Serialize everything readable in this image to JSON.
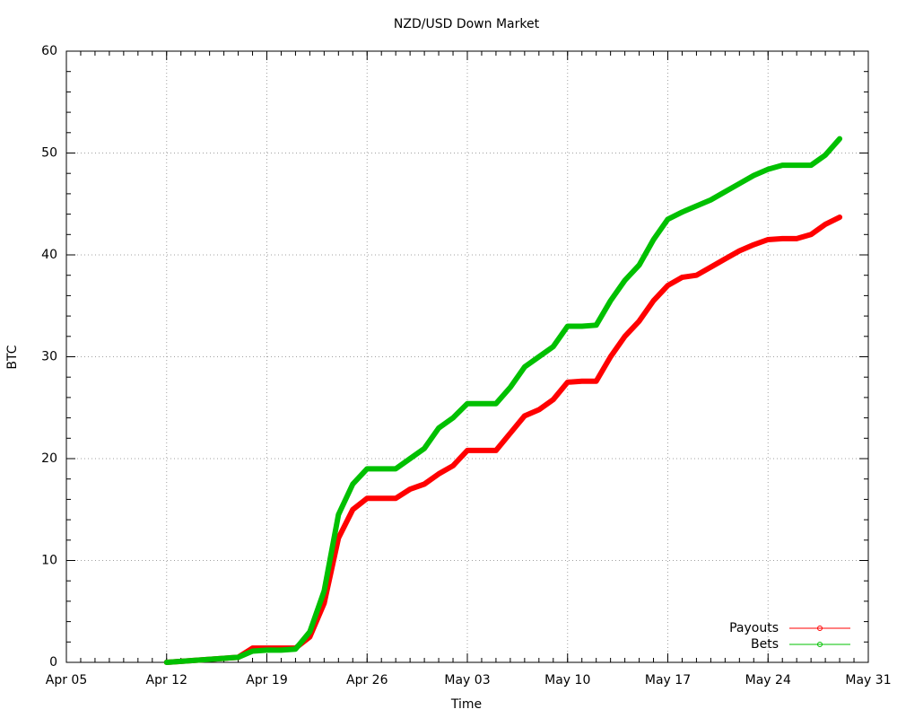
{
  "chart_data": {
    "type": "line",
    "title": "NZD/USD Down Market",
    "x_label": "Time",
    "y_label": "BTC",
    "x": [
      "Apr 12",
      "Apr 13",
      "Apr 14",
      "Apr 15",
      "Apr 16",
      "Apr 17",
      "Apr 18",
      "Apr 19",
      "Apr 20",
      "Apr 21",
      "Apr 22",
      "Apr 23",
      "Apr 24",
      "Apr 25",
      "Apr 26",
      "Apr 27",
      "Apr 28",
      "Apr 29",
      "Apr 30",
      "May 01",
      "May 02",
      "May 03",
      "May 04",
      "May 05",
      "May 06",
      "May 07",
      "May 08",
      "May 09",
      "May 10",
      "May 11",
      "May 12",
      "May 13",
      "May 14",
      "May 15",
      "May 16",
      "May 17",
      "May 18",
      "May 19",
      "May 20",
      "May 21",
      "May 22",
      "May 23",
      "May 24",
      "May 25",
      "May 26",
      "May 27",
      "May 28",
      "May 29"
    ],
    "series": [
      {
        "name": "Payouts",
        "color": "#ff0000",
        "values": [
          0,
          0.1,
          0.2,
          0.3,
          0.4,
          0.5,
          1.4,
          1.4,
          1.4,
          1.4,
          2.5,
          5.8,
          12.2,
          15.0,
          16.1,
          16.1,
          16.1,
          17.0,
          17.5,
          18.5,
          19.3,
          20.8,
          20.8,
          20.8,
          22.5,
          24.2,
          24.8,
          25.8,
          27.5,
          27.6,
          27.6,
          30.0,
          32.0,
          33.5,
          35.5,
          37.0,
          37.8,
          38.0,
          38.8,
          39.6,
          40.4,
          41.0,
          41.5,
          41.6,
          41.6,
          42.0,
          43.0,
          43.7
        ]
      },
      {
        "name": "Bets",
        "color": "#00c000",
        "values": [
          0,
          0.1,
          0.2,
          0.3,
          0.4,
          0.5,
          1.1,
          1.2,
          1.2,
          1.3,
          3.0,
          7.0,
          14.5,
          17.5,
          19.0,
          19.0,
          19.0,
          20.0,
          21.0,
          23.0,
          24.0,
          25.4,
          25.4,
          25.4,
          27.0,
          29.0,
          30.0,
          31.0,
          33.0,
          33.0,
          33.1,
          35.5,
          37.5,
          39.0,
          41.5,
          43.5,
          44.2,
          44.8,
          45.4,
          46.2,
          47.0,
          47.8,
          48.4,
          48.8,
          48.8,
          48.8,
          49.8,
          51.4
        ]
      }
    ],
    "xlim": [
      "Apr 05",
      "May 31"
    ],
    "xticks": [
      "Apr 05",
      "Apr 12",
      "Apr 19",
      "Apr 26",
      "May 03",
      "May 10",
      "May 17",
      "May 24",
      "May 31"
    ],
    "ylim": [
      0,
      60
    ],
    "yticks": [
      0,
      10,
      20,
      30,
      40,
      50,
      60
    ],
    "grid": true,
    "legend": "bottom-right"
  }
}
